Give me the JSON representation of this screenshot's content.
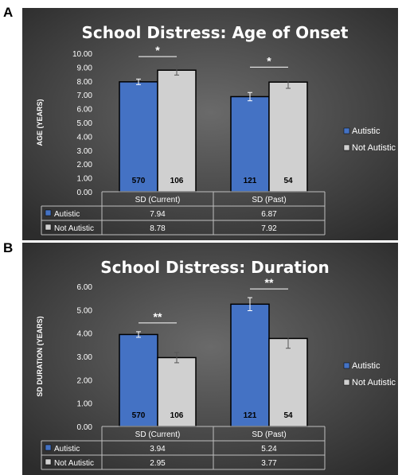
{
  "panel_labels": [
    "A",
    "B"
  ],
  "chart_data": [
    {
      "type": "bar",
      "title": "School Distress: Age of Onset",
      "ylabel": "AGE (YEARS)",
      "xlabel": "",
      "categories": [
        "SD (Current)",
        "SD (Past)"
      ],
      "ylim": [
        0,
        10
      ],
      "yticks": [
        "0.00",
        "1.00",
        "2.00",
        "3.00",
        "4.00",
        "5.00",
        "6.00",
        "7.00",
        "8.00",
        "9.00",
        "10.00"
      ],
      "series": [
        {
          "name": "Autistic",
          "values": [
            7.94,
            6.87
          ],
          "errors": [
            0.2,
            0.3
          ],
          "n": [
            "570",
            "121"
          ],
          "color": "#4472C4",
          "table": [
            "7.94",
            "6.87"
          ]
        },
        {
          "name": "Not Autistic",
          "values": [
            8.78,
            7.92
          ],
          "errors": [
            0.35,
            0.45
          ],
          "n": [
            "106",
            "54"
          ],
          "color": "#D0D0D0",
          "table": [
            "8.78",
            "7.92"
          ]
        }
      ],
      "significance": [
        "*",
        "*"
      ],
      "legend": "right",
      "grid": false
    },
    {
      "type": "bar",
      "title": "School Distress: Duration",
      "ylabel": "SD DURATION (YEARS)",
      "xlabel": "",
      "categories": [
        "SD (Current)",
        "SD (Past)"
      ],
      "ylim": [
        0,
        6
      ],
      "yticks": [
        "0.00",
        "1.00",
        "2.00",
        "3.00",
        "4.00",
        "5.00",
        "6.00"
      ],
      "series": [
        {
          "name": "Autistic",
          "values": [
            3.94,
            5.24
          ],
          "errors": [
            0.12,
            0.28
          ],
          "n": [
            "570",
            "121"
          ],
          "color": "#4472C4",
          "table": [
            "3.94",
            "5.24"
          ]
        },
        {
          "name": "Not Autistic",
          "values": [
            2.95,
            3.77
          ],
          "errors": [
            0.22,
            0.42
          ],
          "n": [
            "106",
            "54"
          ],
          "color": "#D0D0D0",
          "table": [
            "2.95",
            "3.77"
          ]
        }
      ],
      "significance": [
        "**",
        "**"
      ],
      "legend": "right",
      "grid": false
    }
  ]
}
